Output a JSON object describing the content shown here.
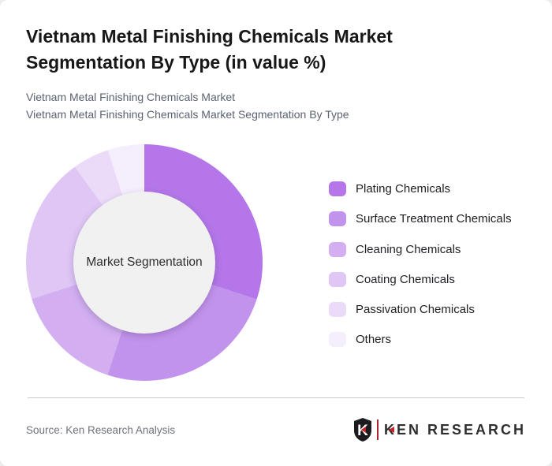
{
  "page": {
    "background": "#ececec",
    "card_background": "#ffffff"
  },
  "header": {
    "subtitle1": "Vietnam Metal Finishing Chemicals Market",
    "subtitle2": "Vietnam Metal Finishing Chemicals Market Segmentation By Type"
  },
  "chart_data": {
    "type": "pie",
    "donut": true,
    "title": "Vietnam Metal Finishing Chemicals Market Segmentation By Type (in value %)",
    "center_label": "Market Segmentation",
    "categories": [
      "Plating Chemicals",
      "Surface Treatment Chemicals",
      "Cleaning Chemicals",
      "Coating Chemicals",
      "Passivation Chemicals",
      "Others"
    ],
    "values": [
      30,
      25,
      15,
      20,
      5,
      5
    ],
    "unit": "%",
    "colors": [
      "#b476e8",
      "#c293ec",
      "#d3aff1",
      "#dfc6f5",
      "#ebdbf9",
      "#f5eefc"
    ],
    "start_angle": 0,
    "direction": "clockwise",
    "inner_radius_pct": 60,
    "inner_circle_color": "#f1f1f2",
    "legend_position": "right"
  },
  "footer": {
    "source": "Source: Ken Research Analysis",
    "logo": {
      "shield_letter": "K",
      "wordmark": "KEN RESEARCH",
      "accent_color": "#c52127"
    }
  }
}
